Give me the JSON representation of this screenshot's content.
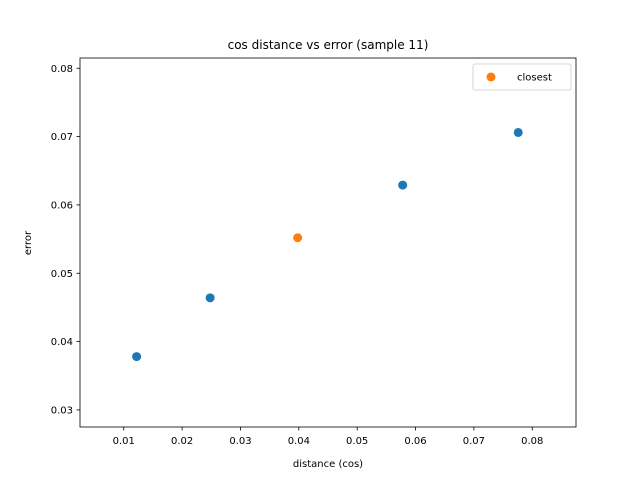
{
  "chart_data": {
    "type": "scatter",
    "title": "cos distance vs error (sample 11)",
    "xlabel": "distance (cos)",
    "ylabel": "error",
    "xlim": [
      0.0025,
      0.0875
    ],
    "ylim": [
      0.0275,
      0.0815
    ],
    "xticks": [
      0.01,
      0.02,
      0.03,
      0.04,
      0.05,
      0.06,
      0.07,
      0.08
    ],
    "xtick_labels": [
      "0.01",
      "0.02",
      "0.03",
      "0.04",
      "0.05",
      "0.06",
      "0.07",
      "0.08"
    ],
    "yticks": [
      0.03,
      0.04,
      0.05,
      0.06,
      0.07,
      0.08
    ],
    "ytick_labels": [
      "0.03",
      "0.04",
      "0.05",
      "0.06",
      "0.07",
      "0.08"
    ],
    "grid": false,
    "legend_position": "top-right",
    "series": [
      {
        "name": "",
        "color": "#1f77b4",
        "in_legend": false,
        "points": [
          {
            "x": 0.0122,
            "y": 0.0378
          },
          {
            "x": 0.0248,
            "y": 0.0464
          },
          {
            "x": 0.0578,
            "y": 0.0629
          },
          {
            "x": 0.0776,
            "y": 0.0706
          }
        ]
      },
      {
        "name": "closest",
        "color": "#ff7f0e",
        "in_legend": true,
        "points": [
          {
            "x": 0.0398,
            "y": 0.0552
          }
        ]
      }
    ]
  }
}
